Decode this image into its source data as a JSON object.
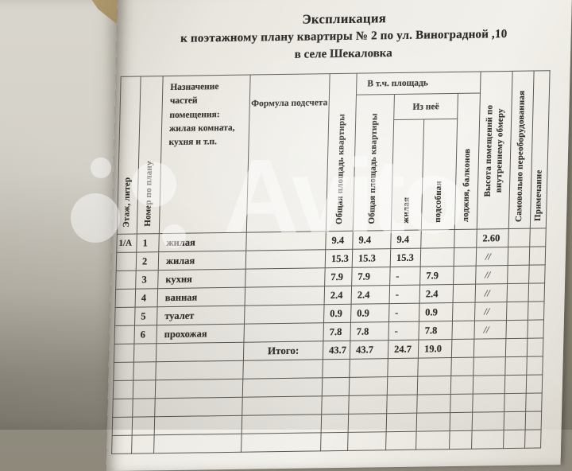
{
  "title": {
    "line1": "Экспликация",
    "line2": "к поэтажному плану квартиры № 2 по ул. Виноградной ,10",
    "line3": "в селе Шекаловка"
  },
  "table": {
    "headers": {
      "floor": "Этаж, литер",
      "num": "Номер по плану",
      "purpose": "Назначение частей помещения: жилая комната, кухня и т.п.",
      "formula": "Формула подсчета",
      "total_area": "Общая площадь квартиры",
      "group_incl": "В т.ч. площадь",
      "total_area2": "Общая площадь квартиры",
      "group_of_it": "Из неё",
      "living": "жилая",
      "aux": "подсобная",
      "balcony": "лоджия, балконов",
      "height": "Высота помещений по внутреннему обмеру",
      "unauth": "Самовольно переоборудованная",
      "note": "Примечание"
    },
    "rows": [
      {
        "floor": "1/А",
        "num": "1",
        "purpose": "жилая",
        "formula": "",
        "total": "9.4",
        "total2": "9.4",
        "living": "9.4",
        "aux": "",
        "balcony": "",
        "height": "2.60",
        "unauth": "",
        "note": ""
      },
      {
        "floor": "",
        "num": "2",
        "purpose": "жилая",
        "formula": "",
        "total": "15.3",
        "total2": "15.3",
        "living": "15.3",
        "aux": "",
        "balcony": "",
        "height": "//",
        "unauth": "",
        "note": ""
      },
      {
        "floor": "",
        "num": "3",
        "purpose": "кухня",
        "formula": "",
        "total": "7.9",
        "total2": "7.9",
        "living": "-",
        "aux": "7.9",
        "balcony": "",
        "height": "//",
        "unauth": "",
        "note": ""
      },
      {
        "floor": "",
        "num": "4",
        "purpose": "ванная",
        "formula": "",
        "total": "2.4",
        "total2": "2.4",
        "living": "-",
        "aux": "2.4",
        "balcony": "",
        "height": "//",
        "unauth": "",
        "note": ""
      },
      {
        "floor": "",
        "num": "5",
        "purpose": "туалет",
        "formula": "",
        "total": "0.9",
        "total2": "0.9",
        "living": "-",
        "aux": "0.9",
        "balcony": "",
        "height": "//",
        "unauth": "",
        "note": ""
      },
      {
        "floor": "",
        "num": "6",
        "purpose": "прохожая",
        "formula": "",
        "total": "7.8",
        "total2": "7.8",
        "living": "-",
        "aux": "7.8",
        "balcony": "",
        "height": "//",
        "unauth": "",
        "note": ""
      }
    ],
    "totals": {
      "label": "Итого:",
      "total": "43.7",
      "total2": "43.7",
      "living": "24.7",
      "aux": "19.0"
    },
    "empty_row_count": 5
  },
  "watermark": {
    "brand": "Avito"
  },
  "colors": {
    "page_bg": "#efede7",
    "left_page_bg": "#d4d1c8",
    "desk_edge": "#86816f",
    "grid_line": "#5b5852",
    "ink": "#33302c",
    "watermark": "#ffffff"
  }
}
